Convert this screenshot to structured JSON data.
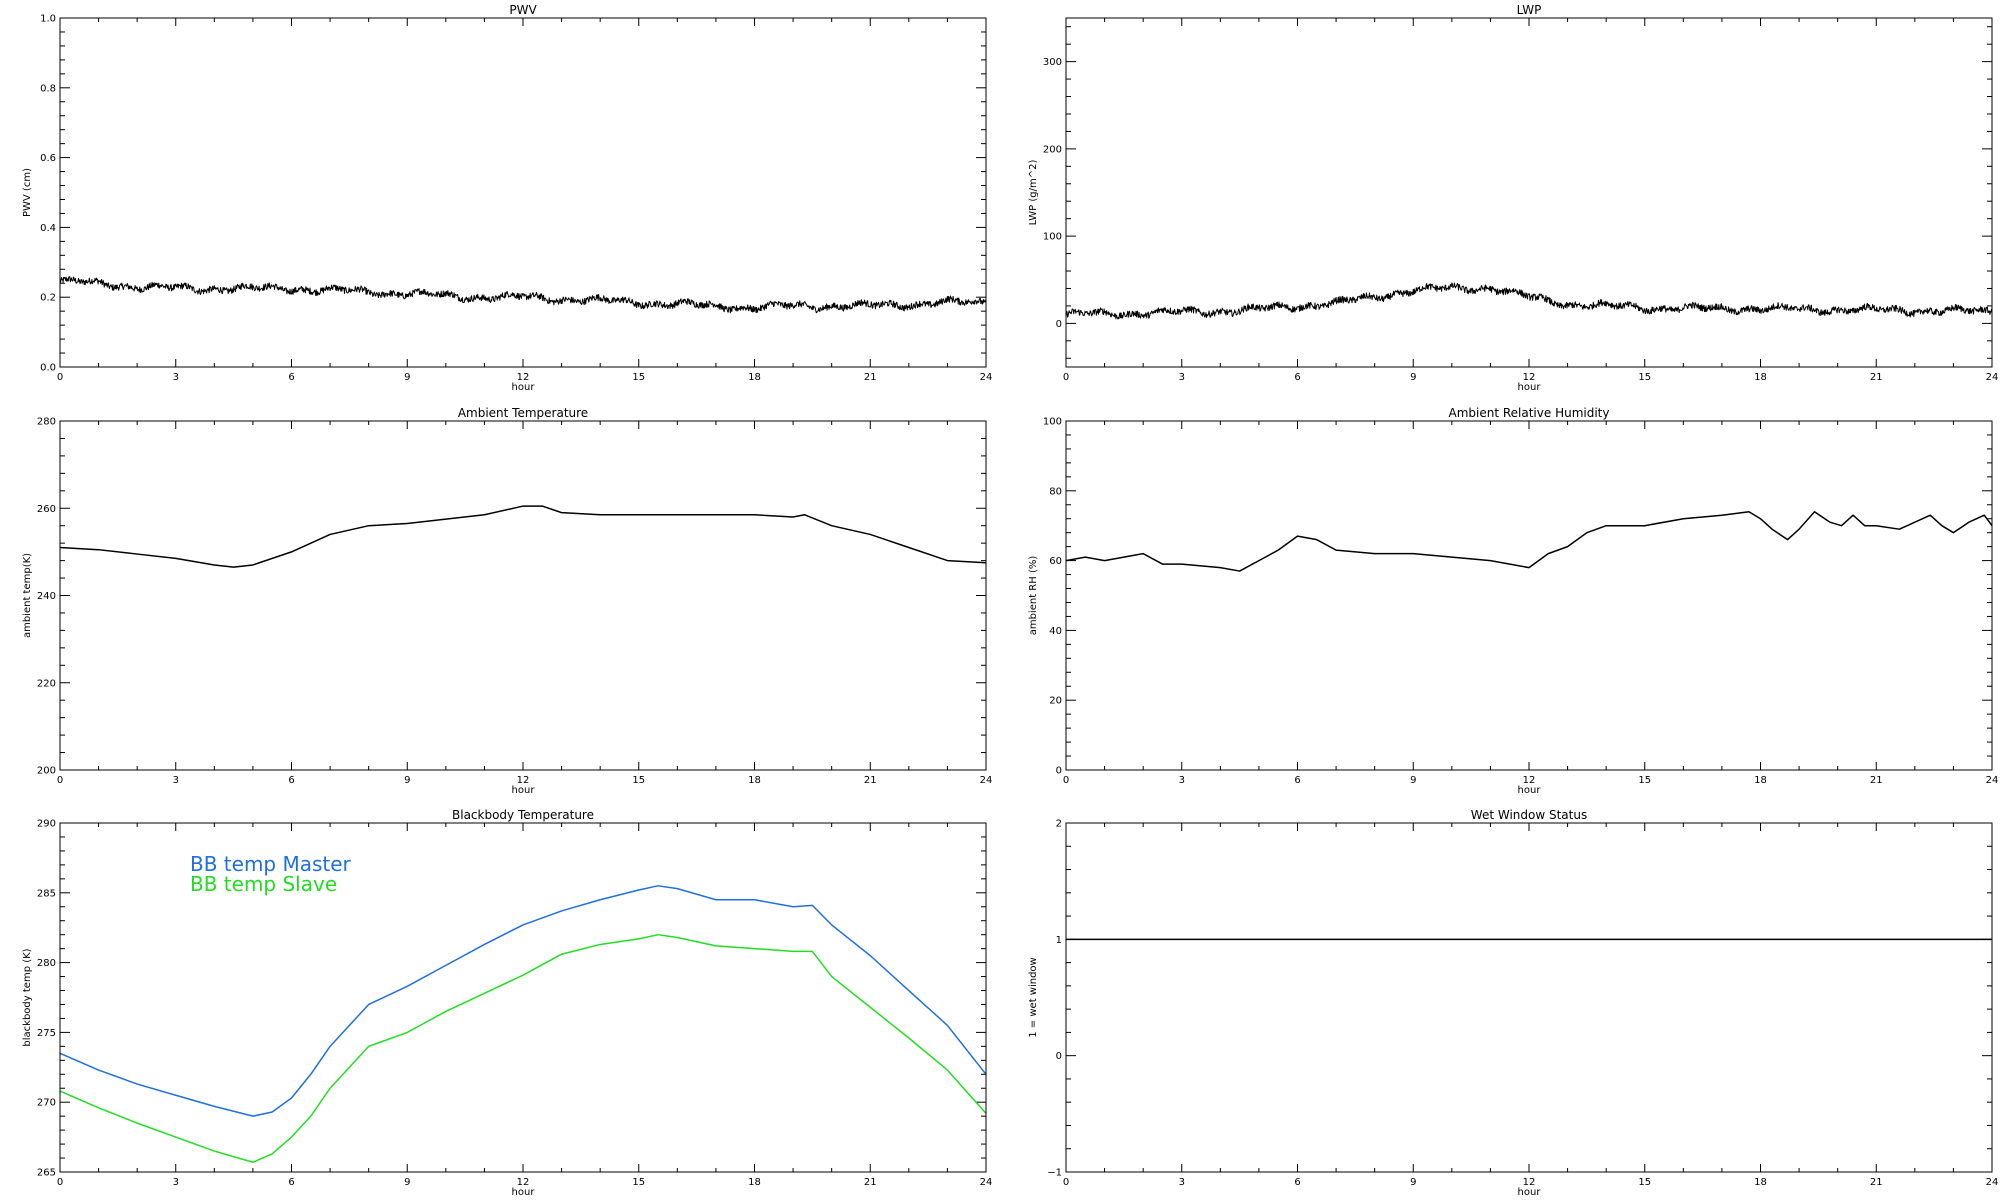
{
  "chart_data": [
    {
      "id": "pwv",
      "type": "line",
      "title": "PWV",
      "xlabel": "hour",
      "ylabel": "PWV (cm)",
      "xlim": [
        0,
        24
      ],
      "ylim": [
        0.0,
        1.0
      ],
      "xticks": [
        "0",
        "3",
        "6",
        "9",
        "12",
        "15",
        "18",
        "21",
        "24"
      ],
      "yticks": [
        "0.0",
        "0.2",
        "0.4",
        "0.6",
        "0.8",
        "1.0"
      ],
      "grid": false,
      "noisy": true,
      "series": [
        {
          "color": "#000000",
          "x": [
            0,
            1,
            2,
            3,
            4,
            5,
            6,
            7,
            8,
            9,
            10,
            11,
            12,
            13,
            14,
            15,
            16,
            17,
            18,
            19,
            20,
            21,
            22,
            23,
            24
          ],
          "y": [
            0.245,
            0.24,
            0.23,
            0.225,
            0.225,
            0.225,
            0.225,
            0.22,
            0.215,
            0.21,
            0.205,
            0.2,
            0.2,
            0.195,
            0.19,
            0.185,
            0.18,
            0.175,
            0.17,
            0.175,
            0.175,
            0.175,
            0.18,
            0.185,
            0.185
          ]
        }
      ]
    },
    {
      "id": "lwp",
      "type": "line",
      "title": "LWP",
      "xlabel": "hour",
      "ylabel": "LWP (g/m^2)",
      "xlim": [
        0,
        24
      ],
      "ylim": [
        -50,
        350
      ],
      "xticks": [
        "0",
        "3",
        "6",
        "9",
        "12",
        "15",
        "18",
        "21",
        "24"
      ],
      "yticks": [
        "0",
        "100",
        "200",
        "300"
      ],
      "ytick_values": [
        0,
        100,
        200,
        300
      ],
      "grid": false,
      "noisy": true,
      "series": [
        {
          "color": "#000000",
          "x": [
            0,
            1,
            2,
            3,
            4,
            5,
            6,
            7,
            8,
            9,
            10,
            11,
            12,
            13,
            14,
            15,
            16,
            17,
            18,
            19,
            20,
            21,
            22,
            23,
            24
          ],
          "y": [
            10,
            11,
            12,
            13,
            14,
            16,
            20,
            23,
            30,
            38,
            40,
            41,
            30,
            22,
            20,
            18,
            17,
            17,
            17,
            16,
            16,
            15,
            15,
            14,
            14
          ]
        }
      ]
    },
    {
      "id": "ambient-temperature",
      "type": "line",
      "title": "Ambient Temperature",
      "xlabel": "hour",
      "ylabel": "ambient temp(K)",
      "xlim": [
        0,
        24
      ],
      "ylim": [
        200,
        280
      ],
      "xticks": [
        "0",
        "3",
        "6",
        "9",
        "12",
        "15",
        "18",
        "21",
        "24"
      ],
      "yticks": [
        "200",
        "220",
        "240",
        "260",
        "280"
      ],
      "grid": false,
      "noisy": false,
      "series": [
        {
          "color": "#000000",
          "x": [
            0,
            1,
            2,
            3,
            4,
            4.5,
            5,
            6,
            7,
            8,
            9,
            10,
            11,
            12,
            12.5,
            13,
            14,
            15,
            16,
            17,
            18,
            19,
            19.3,
            20,
            21,
            22,
            23,
            24
          ],
          "y": [
            251,
            250.5,
            249.5,
            248.5,
            247,
            246.5,
            247,
            250,
            254,
            256,
            256.5,
            257.5,
            258.5,
            260.5,
            260.5,
            259,
            258.5,
            258.5,
            258.5,
            258.5,
            258.5,
            258,
            258.5,
            256,
            254,
            251,
            248,
            247.5
          ]
        }
      ]
    },
    {
      "id": "ambient-relative-humidity",
      "type": "line",
      "title": "Ambient Relative Humidity",
      "xlabel": "hour",
      "ylabel": "ambient RH (%)",
      "xlim": [
        0,
        24
      ],
      "ylim": [
        0,
        100
      ],
      "xticks": [
        "0",
        "3",
        "6",
        "9",
        "12",
        "15",
        "18",
        "21",
        "24"
      ],
      "yticks": [
        "0",
        "20",
        "40",
        "60",
        "80",
        "100"
      ],
      "grid": false,
      "noisy": false,
      "series": [
        {
          "color": "#000000",
          "x": [
            0,
            0.5,
            1,
            1.5,
            2,
            2.5,
            3,
            4,
            4.5,
            5,
            5.5,
            6,
            6.5,
            7,
            8,
            9,
            10,
            11,
            12,
            12.5,
            13,
            13.5,
            14,
            15,
            16,
            17,
            17.7,
            18,
            18.3,
            18.7,
            19,
            19.4,
            19.8,
            20.1,
            20.4,
            20.7,
            21,
            21.6,
            22,
            22.4,
            22.7,
            23,
            23.4,
            23.8,
            24
          ],
          "y": [
            60,
            61,
            60,
            61,
            62,
            59,
            59,
            58,
            57,
            60,
            63,
            67,
            66,
            63,
            62,
            62,
            61,
            60,
            58,
            62,
            64,
            68,
            70,
            70,
            72,
            73,
            74,
            72,
            69,
            66,
            69,
            74,
            71,
            70,
            73,
            70,
            70,
            69,
            71,
            73,
            70,
            68,
            71,
            73,
            70
          ]
        }
      ]
    },
    {
      "id": "blackbody-temperature",
      "type": "line",
      "title": "Blackbody Temperature",
      "xlabel": "hour",
      "ylabel": "blackbody temp (K)",
      "xlim": [
        0,
        24
      ],
      "ylim": [
        265,
        290
      ],
      "xticks": [
        "0",
        "3",
        "6",
        "9",
        "12",
        "15",
        "18",
        "21",
        "24"
      ],
      "yticks": [
        "265",
        "270",
        "275",
        "280",
        "285",
        "290"
      ],
      "grid": false,
      "noisy": false,
      "legend": "top-left",
      "series": [
        {
          "name": "BB temp Master",
          "color": "#1f6fe0",
          "x": [
            0,
            1,
            2,
            3,
            4,
            5,
            5.5,
            6,
            6.5,
            7,
            8,
            9,
            10,
            11,
            12,
            13,
            14,
            15,
            15.5,
            16,
            17,
            18,
            19,
            19.5,
            20,
            21,
            22,
            23,
            24
          ],
          "y": [
            273.5,
            272.3,
            271.3,
            270.5,
            269.7,
            269,
            269.3,
            270.3,
            272,
            274,
            277,
            278.3,
            279.8,
            281.3,
            282.7,
            283.7,
            284.5,
            285.2,
            285.5,
            285.3,
            284.5,
            284.5,
            284,
            284.1,
            282.7,
            280.5,
            278,
            275.5,
            272
          ]
        },
        {
          "name": "BB temp Slave",
          "color": "#22dd22",
          "x": [
            0,
            1,
            2,
            3,
            4,
            5,
            5.5,
            6,
            6.5,
            7,
            8,
            9,
            10,
            11,
            12,
            13,
            14,
            15,
            15.5,
            16,
            17,
            18,
            19,
            19.5,
            20,
            21,
            22,
            23,
            24
          ],
          "y": [
            270.8,
            269.6,
            268.5,
            267.5,
            266.5,
            265.7,
            266.3,
            267.5,
            269,
            271,
            274,
            275,
            276.5,
            277.8,
            279.1,
            280.6,
            281.3,
            281.7,
            282,
            281.8,
            281.2,
            281,
            280.8,
            280.8,
            279,
            276.8,
            274.6,
            272.3,
            269.2
          ]
        }
      ]
    },
    {
      "id": "wet-window-status",
      "type": "line",
      "title": "Wet Window Status",
      "xlabel": "hour",
      "ylabel": "1 = wet window",
      "xlim": [
        0,
        24
      ],
      "ylim": [
        -1,
        2
      ],
      "xticks": [
        "0",
        "3",
        "6",
        "9",
        "12",
        "15",
        "18",
        "21",
        "24"
      ],
      "yticks": [
        "−1",
        "0",
        "1",
        "2"
      ],
      "ytick_values": [
        -1,
        0,
        1,
        2
      ],
      "grid": false,
      "noisy": false,
      "series": [
        {
          "color": "#000000",
          "x": [
            0,
            24
          ],
          "y": [
            1,
            1
          ]
        }
      ]
    }
  ]
}
